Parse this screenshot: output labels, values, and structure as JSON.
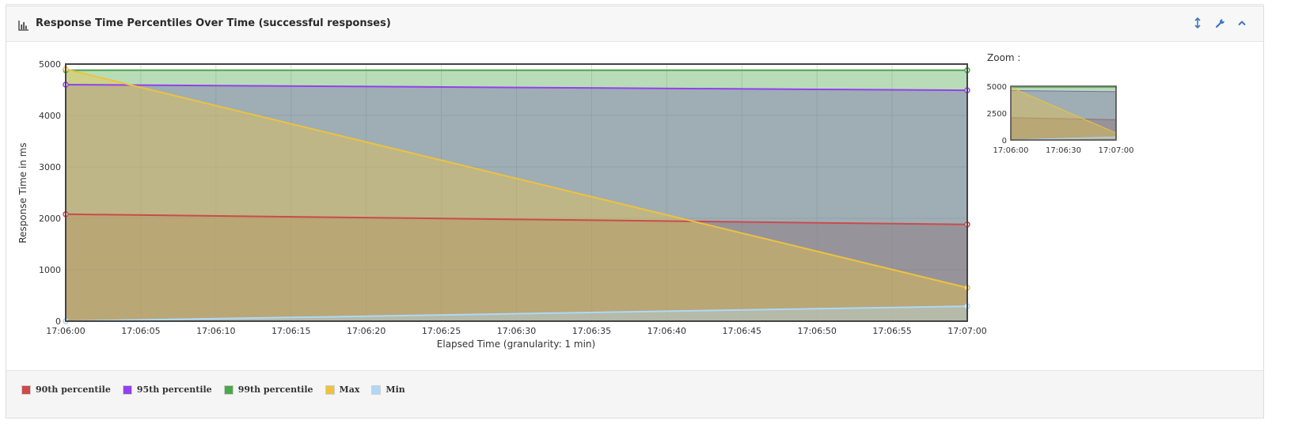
{
  "panel": {
    "title": "Response Time Percentiles Over Time (successful responses)",
    "icons": {
      "heading": "bar-chart-icon",
      "tools": [
        "vertical-resize-icon",
        "wrench-icon",
        "chevron-up-icon"
      ]
    }
  },
  "zoom": {
    "label": "Zoom :",
    "y_ticks": [
      "5000",
      "2500",
      "0"
    ],
    "x_ticks": [
      "17:06:00",
      "17:06:30",
      "17:07:00"
    ]
  },
  "legend": [
    {
      "label": "90th percentile",
      "color": "#cb4b4b"
    },
    {
      "label": "95th percentile",
      "color": "#9440ed"
    },
    {
      "label": "99th percentile",
      "color": "#4da74d"
    },
    {
      "label": "Max",
      "color": "#edc240"
    },
    {
      "label": "Min",
      "color": "#afd8f8"
    }
  ],
  "chart_data": {
    "type": "area",
    "title": "Response Time Percentiles Over Time (successful responses)",
    "xlabel": "Elapsed Time (granularity: 1 min)",
    "ylabel": "Response Time in ms",
    "ylim": [
      0,
      5000
    ],
    "y_ticks": [
      "0",
      "1000",
      "2000",
      "3000",
      "4000",
      "5000"
    ],
    "x_ticks": [
      "17:06:00",
      "17:06:05",
      "17:06:10",
      "17:06:15",
      "17:06:20",
      "17:06:25",
      "17:06:30",
      "17:06:35",
      "17:06:40",
      "17:06:45",
      "17:06:50",
      "17:06:55",
      "17:07:00"
    ],
    "x": [
      "17:06:00",
      "17:07:00"
    ],
    "grid": true,
    "series": [
      {
        "name": "90th percentile",
        "color": "#cb4b4b",
        "values": [
          2080,
          1880
        ]
      },
      {
        "name": "95th percentile",
        "color": "#9440ed",
        "values": [
          4600,
          4490
        ]
      },
      {
        "name": "99th percentile",
        "color": "#4da74d",
        "values": [
          4880,
          4880
        ]
      },
      {
        "name": "Max",
        "color": "#edc240",
        "values": [
          4900,
          650
        ]
      },
      {
        "name": "Min",
        "color": "#afd8f8",
        "values": [
          0,
          290
        ]
      }
    ]
  }
}
